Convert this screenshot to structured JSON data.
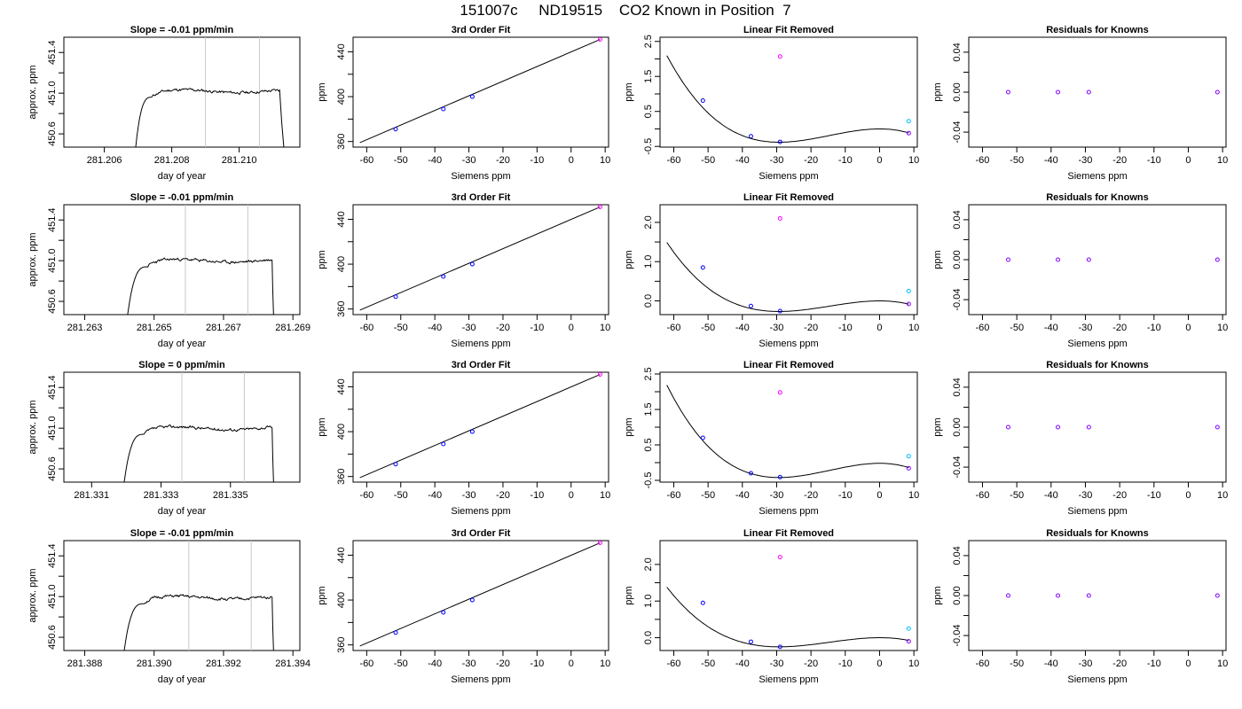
{
  "figure": {
    "title": "151007c     ND19515    CO2 Known in Position  7"
  },
  "colors": {
    "axis": "#000000",
    "trace": "#000000",
    "marker_line": "#c8c8c8",
    "point_blue": "#0000ff",
    "point_magenta": "#ff00ff",
    "point_cyan": "#00bfff",
    "point_purple": "#8000ff",
    "fit": "#000000"
  },
  "chart_data": [
    {
      "type": "line",
      "panel": "timeseries",
      "row": 0,
      "title": "Slope =  -0.01  ppm/min",
      "xlabel": "day of year",
      "ylabel": "approx. ppm",
      "xlim": [
        281.2048,
        281.2118
      ],
      "ylim": [
        450.47,
        451.55
      ],
      "xticks": [
        281.206,
        281.208,
        281.21
      ],
      "xtick_labels": [
        "281.206",
        "281.208",
        "281.210"
      ],
      "yticks": [
        450.6,
        451.0,
        451.4
      ],
      "ytick_labels": [
        "450.6",
        "451.0",
        "451.4"
      ],
      "vlines": [
        281.209,
        281.2106
      ],
      "trace": {
        "start": 281.2069,
        "rise_end": 281.2074,
        "end": 281.2112,
        "level": 451.02,
        "drop_end": 281.21135,
        "seed": 11
      }
    },
    {
      "type": "line",
      "panel": "cubic",
      "row": 0,
      "title": "3rd Order Fit",
      "xlabel": "Siemens ppm",
      "ylabel": "ppm",
      "xlim": [
        -64,
        11
      ],
      "ylim": [
        355,
        453
      ],
      "xticks": [
        -60,
        -50,
        -40,
        -30,
        -20,
        -10,
        0,
        10
      ],
      "yticks": [
        360,
        400,
        440
      ],
      "ytick_labels": [
        "360",
        "400",
        "440"
      ],
      "line": {
        "x": [
          -62,
          8.5
        ],
        "y": [
          359,
          451
        ]
      },
      "points": [
        {
          "x": -51.5,
          "y": 371,
          "color": "blue"
        },
        {
          "x": -37.5,
          "y": 389,
          "color": "blue"
        },
        {
          "x": -29,
          "y": 400,
          "color": "blue"
        },
        {
          "x": 8.5,
          "y": 451,
          "color": "magenta"
        }
      ]
    },
    {
      "type": "scatter",
      "panel": "linear_removed",
      "row": 0,
      "title": "Linear Fit Removed",
      "xlabel": "Siemens ppm",
      "ylabel": "ppm",
      "xlim": [
        -64,
        11
      ],
      "ylim": [
        -0.52,
        2.62
      ],
      "xticks": [
        -60,
        -50,
        -40,
        -30,
        -20,
        -10,
        0,
        10
      ],
      "yticks": [
        -0.5,
        0.5,
        1.5,
        2.5
      ],
      "ytick_labels": [
        "-0.5",
        "0.5",
        "1.5",
        "2.5"
      ],
      "curve": {
        "x_from": -62,
        "x_to": 8.5,
        "x_min": -29.3,
        "y_min": -0.38,
        "x_peak": 0,
        "y_peak": 0.0,
        "y_start": 2.45
      },
      "points": [
        {
          "x": -51.5,
          "y": 0.81,
          "color": "blue"
        },
        {
          "x": -37.5,
          "y": -0.21,
          "color": "blue"
        },
        {
          "x": -29,
          "y": -0.37,
          "color": "blue"
        },
        {
          "x": -29,
          "y": 2.07,
          "color": "magenta"
        },
        {
          "x": 8.5,
          "y": 0.22,
          "color": "cyan"
        },
        {
          "x": 8.5,
          "y": -0.12,
          "color": "purple"
        }
      ]
    },
    {
      "type": "scatter",
      "panel": "residuals",
      "row": 0,
      "title": "Residuals for Knowns",
      "xlabel": "Siemens ppm",
      "ylabel": "ppm",
      "xlim": [
        -64,
        11
      ],
      "ylim": [
        -0.055,
        0.055
      ],
      "xticks": [
        -60,
        -50,
        -40,
        -30,
        -20,
        -10,
        0,
        10
      ],
      "yticks": [
        -0.04,
        0.0,
        0.04
      ],
      "ytick_labels": [
        "-0.04",
        "0.00",
        "0.04"
      ],
      "points": [
        {
          "x": -52.5,
          "y": 0,
          "color": "purple"
        },
        {
          "x": -38,
          "y": 0,
          "color": "purple"
        },
        {
          "x": -29,
          "y": 0,
          "color": "purple"
        },
        {
          "x": 8.5,
          "y": 0,
          "color": "purple"
        }
      ]
    },
    {
      "type": "line",
      "panel": "timeseries",
      "row": 1,
      "title": "Slope =  -0.01  ppm/min",
      "xlabel": "day of year",
      "ylabel": "approx. ppm",
      "xlim": [
        281.2624,
        281.2692
      ],
      "ylim": [
        450.47,
        451.55
      ],
      "xticks": [
        281.263,
        281.265,
        281.267,
        281.269
      ],
      "xtick_labels": [
        "281.263",
        "281.265",
        "281.267",
        "281.269"
      ],
      "yticks": [
        450.6,
        451.0,
        451.4
      ],
      "ytick_labels": [
        "450.6",
        "451.0",
        "451.4"
      ],
      "vlines": [
        281.2659,
        281.2677
      ],
      "trace": {
        "start": 281.2642,
        "rise_end": 281.2648,
        "end": 281.2684,
        "level": 451.0,
        "drop_end": 281.26845,
        "seed": 23
      }
    },
    {
      "type": "line",
      "panel": "cubic",
      "row": 1,
      "title": "3rd Order Fit",
      "xlabel": "Siemens ppm",
      "ylabel": "ppm",
      "xlim": [
        -64,
        11
      ],
      "ylim": [
        355,
        453
      ],
      "xticks": [
        -60,
        -50,
        -40,
        -30,
        -20,
        -10,
        0,
        10
      ],
      "yticks": [
        360,
        400,
        440
      ],
      "ytick_labels": [
        "360",
        "400",
        "440"
      ],
      "line": {
        "x": [
          -62,
          8.5
        ],
        "y": [
          359,
          451
        ]
      },
      "points": [
        {
          "x": -51.5,
          "y": 371,
          "color": "blue"
        },
        {
          "x": -37.5,
          "y": 389,
          "color": "blue"
        },
        {
          "x": -29,
          "y": 400,
          "color": "blue"
        },
        {
          "x": 8.5,
          "y": 451,
          "color": "magenta"
        }
      ]
    },
    {
      "type": "scatter",
      "panel": "linear_removed",
      "row": 1,
      "title": "Linear Fit Removed",
      "xlabel": "Siemens ppm",
      "ylabel": "ppm",
      "xlim": [
        -64,
        11
      ],
      "ylim": [
        -0.35,
        2.45
      ],
      "xticks": [
        -60,
        -50,
        -40,
        -30,
        -20,
        -10,
        0,
        10
      ],
      "yticks": [
        0.0,
        1.0,
        2.0
      ],
      "ytick_labels": [
        "0.0",
        "1.0",
        "2.0"
      ],
      "curve": {
        "x_from": -62,
        "x_to": 8.5,
        "x_min": -29.3,
        "y_min": -0.27,
        "x_peak": 0,
        "y_peak": 0.0,
        "y_start": 2.35
      },
      "points": [
        {
          "x": -51.5,
          "y": 0.85,
          "color": "blue"
        },
        {
          "x": -37.5,
          "y": -0.13,
          "color": "blue"
        },
        {
          "x": -29,
          "y": -0.26,
          "color": "blue"
        },
        {
          "x": -29,
          "y": 2.1,
          "color": "magenta"
        },
        {
          "x": 8.5,
          "y": 0.25,
          "color": "cyan"
        },
        {
          "x": 8.5,
          "y": -0.08,
          "color": "purple"
        }
      ]
    },
    {
      "type": "scatter",
      "panel": "residuals",
      "row": 1,
      "title": "Residuals for Knowns",
      "xlabel": "Siemens ppm",
      "ylabel": "ppm",
      "xlim": [
        -64,
        11
      ],
      "ylim": [
        -0.055,
        0.055
      ],
      "xticks": [
        -60,
        -50,
        -40,
        -30,
        -20,
        -10,
        0,
        10
      ],
      "yticks": [
        -0.04,
        0.0,
        0.04
      ],
      "ytick_labels": [
        "-0.04",
        "0.00",
        "0.04"
      ],
      "points": [
        {
          "x": -52.5,
          "y": 0,
          "color": "purple"
        },
        {
          "x": -38,
          "y": 0,
          "color": "purple"
        },
        {
          "x": -29,
          "y": 0,
          "color": "purple"
        },
        {
          "x": 8.5,
          "y": 0,
          "color": "purple"
        }
      ]
    },
    {
      "type": "line",
      "panel": "timeseries",
      "row": 2,
      "title": "Slope =  0  ppm/min",
      "xlabel": "day of year",
      "ylabel": "approx. ppm",
      "xlim": [
        281.3302,
        281.337
      ],
      "ylim": [
        450.47,
        451.55
      ],
      "xticks": [
        281.331,
        281.333,
        281.335
      ],
      "xtick_labels": [
        "281.331",
        "281.333",
        "281.335"
      ],
      "yticks": [
        450.6,
        451.0,
        451.4
      ],
      "ytick_labels": [
        "450.6",
        "451.0",
        "451.4"
      ],
      "vlines": [
        281.3336,
        281.3354
      ],
      "trace": {
        "start": 281.3319,
        "rise_end": 281.3325,
        "end": 281.3362,
        "level": 451.0,
        "drop_end": 281.33625,
        "seed": 37
      }
    },
    {
      "type": "line",
      "panel": "cubic",
      "row": 2,
      "title": "3rd Order Fit",
      "xlabel": "Siemens ppm",
      "ylabel": "ppm",
      "xlim": [
        -64,
        11
      ],
      "ylim": [
        355,
        453
      ],
      "xticks": [
        -60,
        -50,
        -40,
        -30,
        -20,
        -10,
        0,
        10
      ],
      "yticks": [
        360,
        400,
        440
      ],
      "ytick_labels": [
        "360",
        "400",
        "440"
      ],
      "line": {
        "x": [
          -62,
          8.5
        ],
        "y": [
          359,
          451
        ]
      },
      "points": [
        {
          "x": -51.5,
          "y": 371,
          "color": "blue"
        },
        {
          "x": -37.5,
          "y": 389,
          "color": "blue"
        },
        {
          "x": -29,
          "y": 400,
          "color": "blue"
        },
        {
          "x": 8.5,
          "y": 451,
          "color": "magenta"
        }
      ]
    },
    {
      "type": "scatter",
      "panel": "linear_removed",
      "row": 2,
      "title": "Linear Fit Removed",
      "xlabel": "Siemens ppm",
      "ylabel": "ppm",
      "xlim": [
        -64,
        11
      ],
      "ylim": [
        -0.55,
        2.55
      ],
      "xticks": [
        -60,
        -50,
        -40,
        -30,
        -20,
        -10,
        0,
        10
      ],
      "yticks": [
        -0.5,
        0.5,
        1.5,
        2.5
      ],
      "ytick_labels": [
        "-0.5",
        "0.5",
        "1.5",
        "2.5"
      ],
      "curve": {
        "x_from": -62,
        "x_to": 8.5,
        "x_min": -29.3,
        "y_min": -0.42,
        "x_peak": 0,
        "y_peak": -0.02,
        "y_start": 2.4
      },
      "points": [
        {
          "x": -51.5,
          "y": 0.7,
          "color": "blue"
        },
        {
          "x": -37.5,
          "y": -0.3,
          "color": "blue"
        },
        {
          "x": -29,
          "y": -0.41,
          "color": "blue"
        },
        {
          "x": -29,
          "y": 1.98,
          "color": "magenta"
        },
        {
          "x": 8.5,
          "y": 0.18,
          "color": "cyan"
        },
        {
          "x": 8.5,
          "y": -0.16,
          "color": "purple"
        }
      ]
    },
    {
      "type": "scatter",
      "panel": "residuals",
      "row": 2,
      "title": "Residuals for Knowns",
      "xlabel": "Siemens ppm",
      "ylabel": "ppm",
      "xlim": [
        -64,
        11
      ],
      "ylim": [
        -0.055,
        0.055
      ],
      "xticks": [
        -60,
        -50,
        -40,
        -30,
        -20,
        -10,
        0,
        10
      ],
      "yticks": [
        -0.04,
        0.0,
        0.04
      ],
      "ytick_labels": [
        "-0.04",
        "0.00",
        "0.04"
      ],
      "points": [
        {
          "x": -52.5,
          "y": 0,
          "color": "purple"
        },
        {
          "x": -38,
          "y": 0,
          "color": "purple"
        },
        {
          "x": -29,
          "y": 0,
          "color": "purple"
        },
        {
          "x": 8.5,
          "y": 0,
          "color": "purple"
        }
      ]
    },
    {
      "type": "line",
      "panel": "timeseries",
      "row": 3,
      "title": "Slope =  -0.01  ppm/min",
      "xlabel": "day of year",
      "ylabel": "approx. ppm",
      "xlim": [
        281.3874,
        281.3942
      ],
      "ylim": [
        450.47,
        451.55
      ],
      "xticks": [
        281.388,
        281.39,
        281.392,
        281.394
      ],
      "xtick_labels": [
        "281.388",
        "281.390",
        "281.392",
        "281.394"
      ],
      "yticks": [
        450.6,
        451.0,
        451.4
      ],
      "ytick_labels": [
        "450.6",
        "451.0",
        "451.4"
      ],
      "vlines": [
        281.391,
        281.3928
      ],
      "trace": {
        "start": 281.3891,
        "rise_end": 281.3897,
        "end": 281.3934,
        "level": 450.99,
        "drop_end": 281.39345,
        "seed": 51
      }
    },
    {
      "type": "line",
      "panel": "cubic",
      "row": 3,
      "title": "3rd Order Fit",
      "xlabel": "Siemens ppm",
      "ylabel": "ppm",
      "xlim": [
        -64,
        11
      ],
      "ylim": [
        355,
        453
      ],
      "xticks": [
        -60,
        -50,
        -40,
        -30,
        -20,
        -10,
        0,
        10
      ],
      "yticks": [
        360,
        400,
        440
      ],
      "ytick_labels": [
        "360",
        "400",
        "440"
      ],
      "line": {
        "x": [
          -62,
          8.5
        ],
        "y": [
          359,
          451
        ]
      },
      "points": [
        {
          "x": -51.5,
          "y": 371,
          "color": "blue"
        },
        {
          "x": -37.5,
          "y": 389,
          "color": "blue"
        },
        {
          "x": -29,
          "y": 400,
          "color": "blue"
        },
        {
          "x": 8.5,
          "y": 451,
          "color": "magenta"
        }
      ]
    },
    {
      "type": "scatter",
      "panel": "linear_removed",
      "row": 3,
      "title": "Linear Fit Removed",
      "xlabel": "Siemens ppm",
      "ylabel": "ppm",
      "xlim": [
        -64,
        11
      ],
      "ylim": [
        -0.35,
        2.65
      ],
      "xticks": [
        -60,
        -50,
        -40,
        -30,
        -20,
        -10,
        0,
        10
      ],
      "yticks": [
        0.0,
        1.0,
        2.0
      ],
      "ytick_labels": [
        "0.0",
        "1.0",
        "2.0"
      ],
      "curve": {
        "x_from": -62,
        "x_to": 8.5,
        "x_min": -29.3,
        "y_min": -0.25,
        "x_peak": 0,
        "y_peak": 0.0,
        "y_start": 2.55
      },
      "points": [
        {
          "x": -51.5,
          "y": 0.95,
          "color": "blue"
        },
        {
          "x": -37.5,
          "y": -0.11,
          "color": "blue"
        },
        {
          "x": -29,
          "y": -0.25,
          "color": "blue"
        },
        {
          "x": -29,
          "y": 2.2,
          "color": "magenta"
        },
        {
          "x": 8.5,
          "y": 0.25,
          "color": "cyan"
        },
        {
          "x": 8.5,
          "y": -0.1,
          "color": "purple"
        }
      ]
    },
    {
      "type": "scatter",
      "panel": "residuals",
      "row": 3,
      "title": "Residuals for Knowns",
      "xlabel": "Siemens ppm",
      "ylabel": "ppm",
      "xlim": [
        -64,
        11
      ],
      "ylim": [
        -0.055,
        0.055
      ],
      "xticks": [
        -60,
        -50,
        -40,
        -30,
        -20,
        -10,
        0,
        10
      ],
      "yticks": [
        -0.04,
        0.0,
        0.04
      ],
      "ytick_labels": [
        "-0.04",
        "0.00",
        "0.04"
      ],
      "points": [
        {
          "x": -52.5,
          "y": 0,
          "color": "purple"
        },
        {
          "x": -38,
          "y": 0,
          "color": "purple"
        },
        {
          "x": -29,
          "y": 0,
          "color": "purple"
        },
        {
          "x": 8.5,
          "y": 0,
          "color": "purple"
        }
      ]
    }
  ]
}
